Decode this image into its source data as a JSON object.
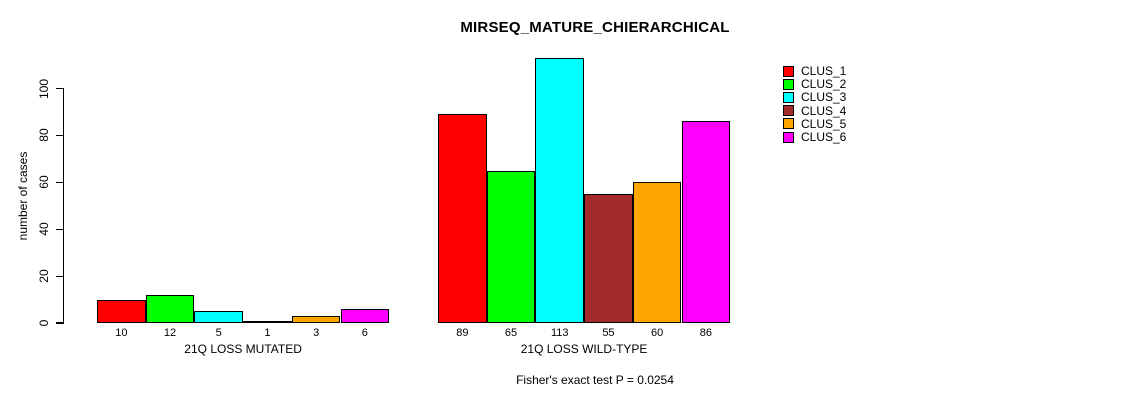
{
  "title": "MIRSEQ_MATURE_CHIERARCHICAL",
  "y_axis": {
    "label": "number of cases",
    "ticks": [
      0,
      20,
      40,
      60,
      80,
      100
    ]
  },
  "caption": "Fisher's exact test P = 0.0254",
  "colors": {
    "background": "#FFFFFF",
    "text": "#000000",
    "axis": "#000000"
  },
  "chart_data": {
    "type": "bar",
    "title": "MIRSEQ_MATURE_CHIERARCHICAL",
    "xlabel": "",
    "ylabel": "number of cases",
    "ylim": [
      0,
      113
    ],
    "yticks": [
      0,
      20,
      40,
      60,
      80,
      100
    ],
    "grid": false,
    "legend_position": "right",
    "categories": [
      "21Q LOSS MUTATED",
      "21Q LOSS WILD-TYPE"
    ],
    "series": [
      {
        "name": "CLUS_1",
        "color": "#FF0000",
        "values": [
          10,
          89
        ]
      },
      {
        "name": "CLUS_2",
        "color": "#00FF00",
        "values": [
          12,
          65
        ]
      },
      {
        "name": "CLUS_3",
        "color": "#00FFFF",
        "values": [
          5,
          113
        ]
      },
      {
        "name": "CLUS_4",
        "color": "#A52A2A",
        "values": [
          1,
          55
        ]
      },
      {
        "name": "CLUS_5",
        "color": "#FFA500",
        "values": [
          3,
          60
        ]
      },
      {
        "name": "CLUS_6",
        "color": "#FF00FF",
        "values": [
          6,
          86
        ]
      }
    ],
    "bar_value_labels": [
      [
        10,
        12,
        5,
        1,
        3,
        6
      ],
      [
        89,
        65,
        113,
        55,
        60,
        86
      ]
    ],
    "annotation": "Fisher's exact test P = 0.0254"
  }
}
